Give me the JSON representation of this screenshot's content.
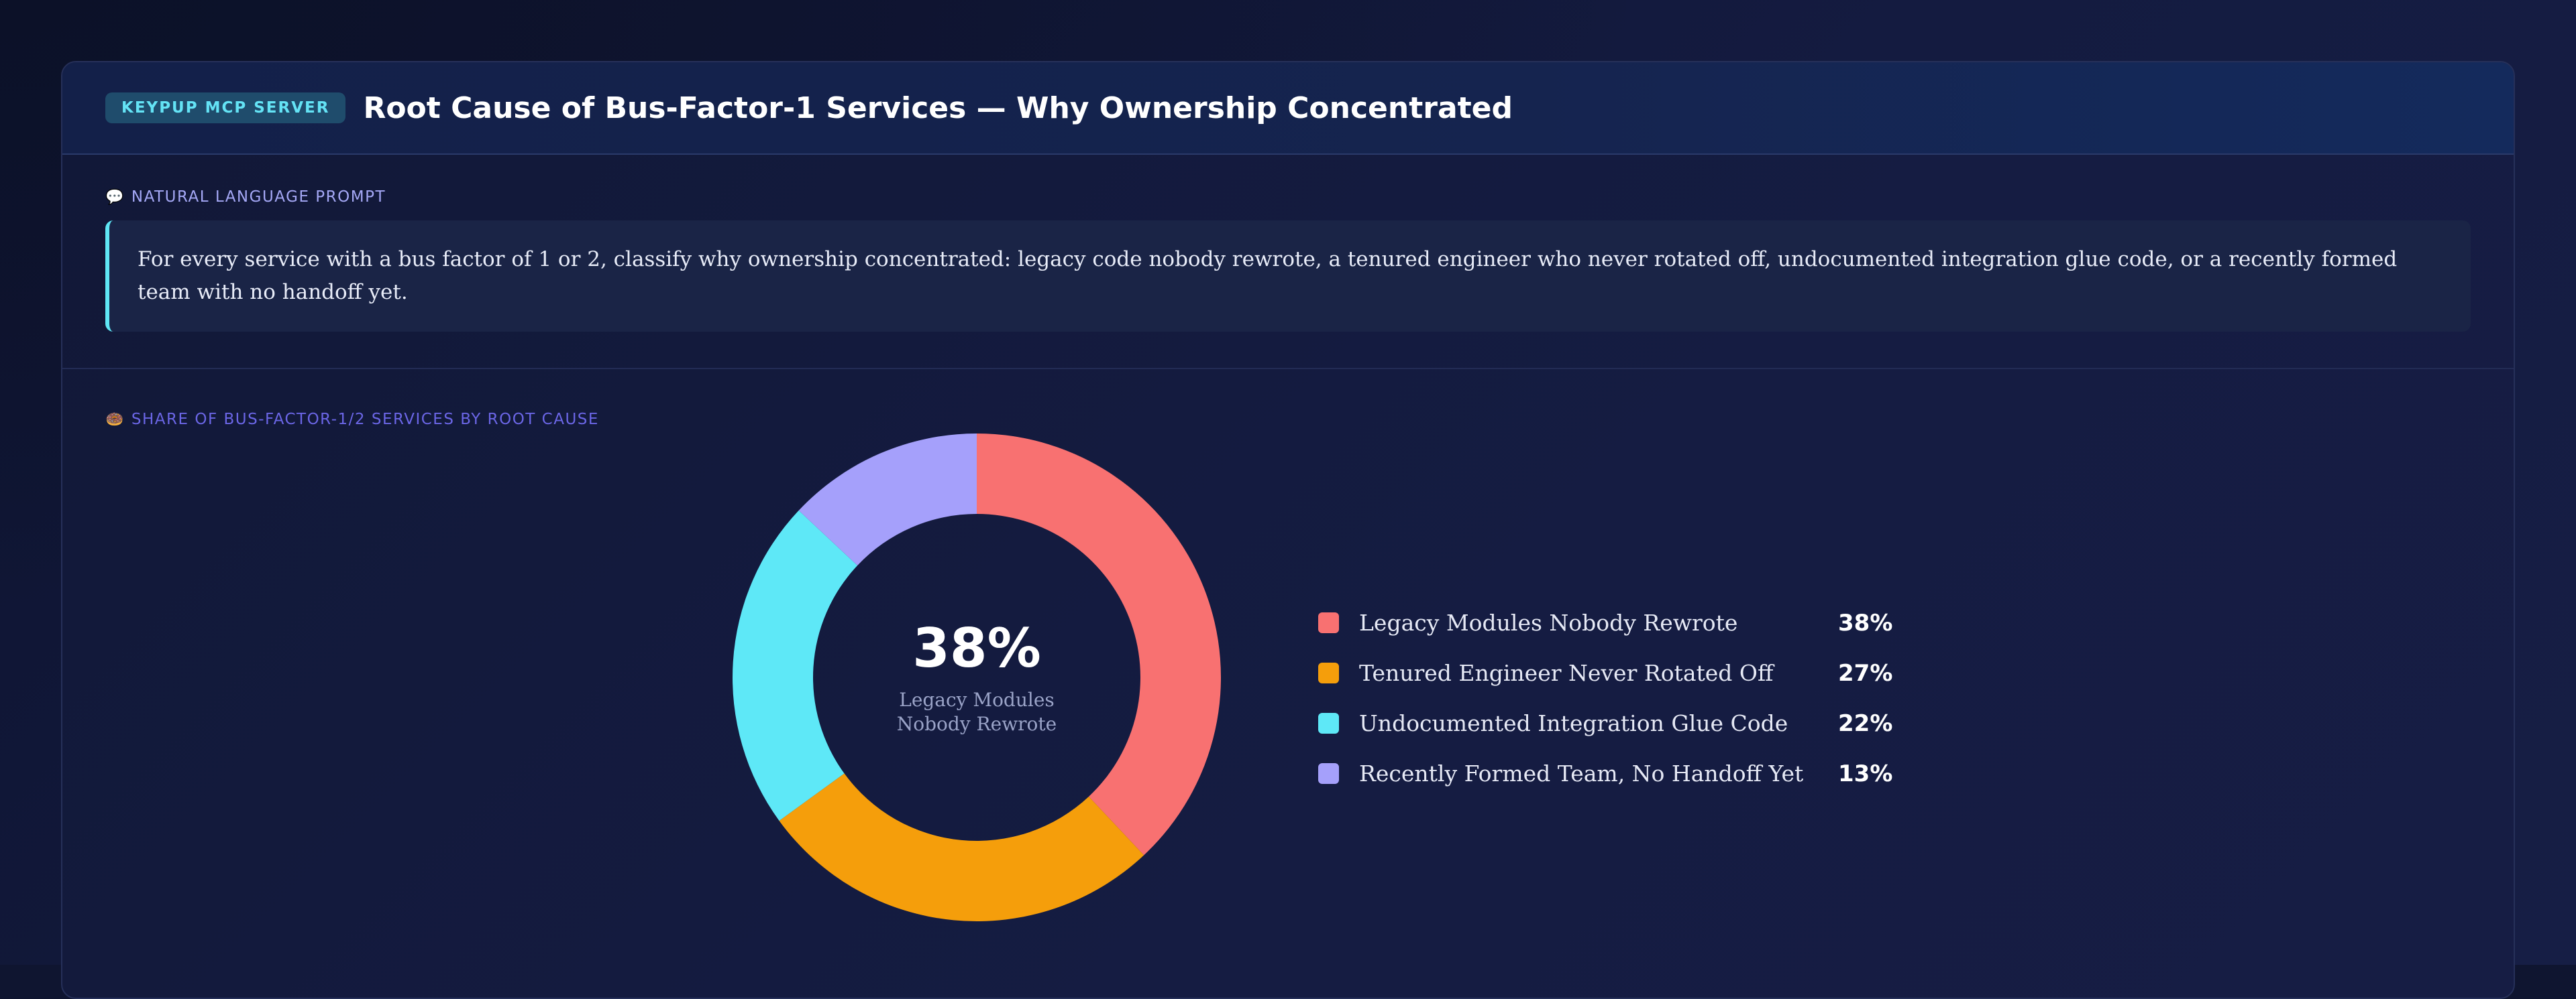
{
  "header": {
    "badge": "KEYPUP MCP SERVER",
    "title": "Root Cause of Bus-Factor-1 Services — Why Ownership Concentrated"
  },
  "prompt": {
    "label": "NATURAL LANGUAGE PROMPT",
    "icon": "speech-bubble-icon",
    "text": "For every service with a bus factor of 1 or 2, classify why ownership concentrated: legacy code nobody rewrote, a tenured engineer who never rotated off, undocumented integration glue code, or a recently formed team with no handoff yet."
  },
  "chart_section": {
    "label": "SHARE OF BUS-FACTOR-1/2 SERVICES BY ROOT CAUSE",
    "icon": "donut-icon"
  },
  "chart_data": {
    "type": "pie",
    "style": "donut",
    "categories": [
      "Legacy Modules Nobody Rewrote",
      "Tenured Engineer Never Rotated Off",
      "Undocumented Integration Glue Code",
      "Recently Formed Team, No Handoff Yet"
    ],
    "values": [
      38,
      27,
      22,
      13
    ],
    "value_labels": [
      "38%",
      "27%",
      "22%",
      "13%"
    ],
    "colors": [
      "#f87171",
      "#f59e0b",
      "#5ee8f7",
      "#a5a0fb"
    ],
    "center_value": "38%",
    "center_label": "Legacy Modules Nobody Rewrote",
    "legend_position": "right"
  }
}
